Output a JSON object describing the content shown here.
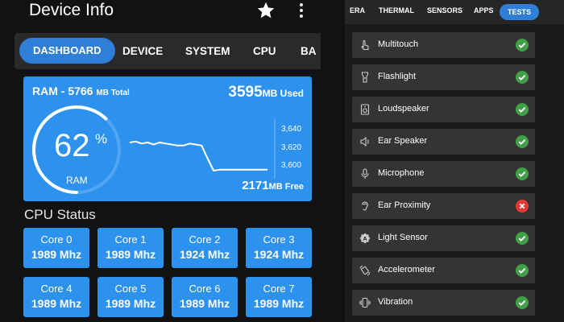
{
  "app": {
    "title": "Device Info",
    "star_icon": "star-icon",
    "menu_icon": "more-vert-icon"
  },
  "tabs": [
    {
      "label": "DASHBOARD",
      "active": true
    },
    {
      "label": "DEVICE"
    },
    {
      "label": "SYSTEM"
    },
    {
      "label": "CPU"
    },
    {
      "label": "BA"
    }
  ],
  "ram": {
    "title": "RAM - 5766",
    "title_unit": "MB Total",
    "used_value": "3595",
    "used_unit": "MB Used",
    "free_value": "2171",
    "free_unit": "MB Free",
    "percent": "62",
    "percent_sign": "%",
    "percent_fraction": 0.62,
    "label": "RAM",
    "y_ticks": [
      "3,640",
      "3,620",
      "3,600"
    ]
  },
  "chart_data": {
    "type": "line",
    "ylim": [
      3590,
      3650
    ],
    "series": [
      {
        "values": [
          3626,
          3627,
          3625,
          3626,
          3624,
          3626,
          3625,
          3624,
          3623,
          3623,
          3625,
          3624,
          3623,
          3610,
          3598,
          3599,
          3599,
          3599,
          3599,
          3599,
          3599,
          3599,
          3599,
          3599
        ]
      }
    ]
  },
  "cpu": {
    "title": "CPU Status",
    "cores": [
      {
        "name": "Core 0",
        "freq": "1989 Mhz"
      },
      {
        "name": "Core 1",
        "freq": "1989 Mhz"
      },
      {
        "name": "Core 2",
        "freq": "1924 Mhz"
      },
      {
        "name": "Core 3",
        "freq": "1924 Mhz"
      },
      {
        "name": "Core 4",
        "freq": "1989 Mhz"
      },
      {
        "name": "Core 5",
        "freq": "1989 Mhz"
      },
      {
        "name": "Core 6",
        "freq": "1989 Mhz"
      },
      {
        "name": "Core 7",
        "freq": "1989 Mhz"
      }
    ]
  },
  "right_tabs": [
    {
      "label": "ERA"
    },
    {
      "label": "THERMAL"
    },
    {
      "label": "SENSORS"
    },
    {
      "label": "APPS"
    },
    {
      "label": "TESTS",
      "active": true
    }
  ],
  "tests": [
    {
      "label": "Multitouch",
      "icon": "touch-icon",
      "status": "pass"
    },
    {
      "label": "Flashlight",
      "icon": "flashlight-icon",
      "status": "pass"
    },
    {
      "label": "Loudspeaker",
      "icon": "speaker-icon",
      "status": "pass"
    },
    {
      "label": "Ear Speaker",
      "icon": "ear-speaker-icon",
      "status": "pass"
    },
    {
      "label": "Microphone",
      "icon": "microphone-icon",
      "status": "pass"
    },
    {
      "label": "Ear Proximity",
      "icon": "ear-icon",
      "status": "fail"
    },
    {
      "label": "Light Sensor",
      "icon": "light-sensor-icon",
      "status": "pass"
    },
    {
      "label": "Accelerometer",
      "icon": "accelerometer-icon",
      "status": "pass"
    },
    {
      "label": "Vibration",
      "icon": "vibration-icon",
      "status": "pass"
    }
  ],
  "colors": {
    "accent": "#2d92ee",
    "tab_active": "#2f7fd8",
    "pass": "#43a047",
    "fail": "#e53935"
  }
}
